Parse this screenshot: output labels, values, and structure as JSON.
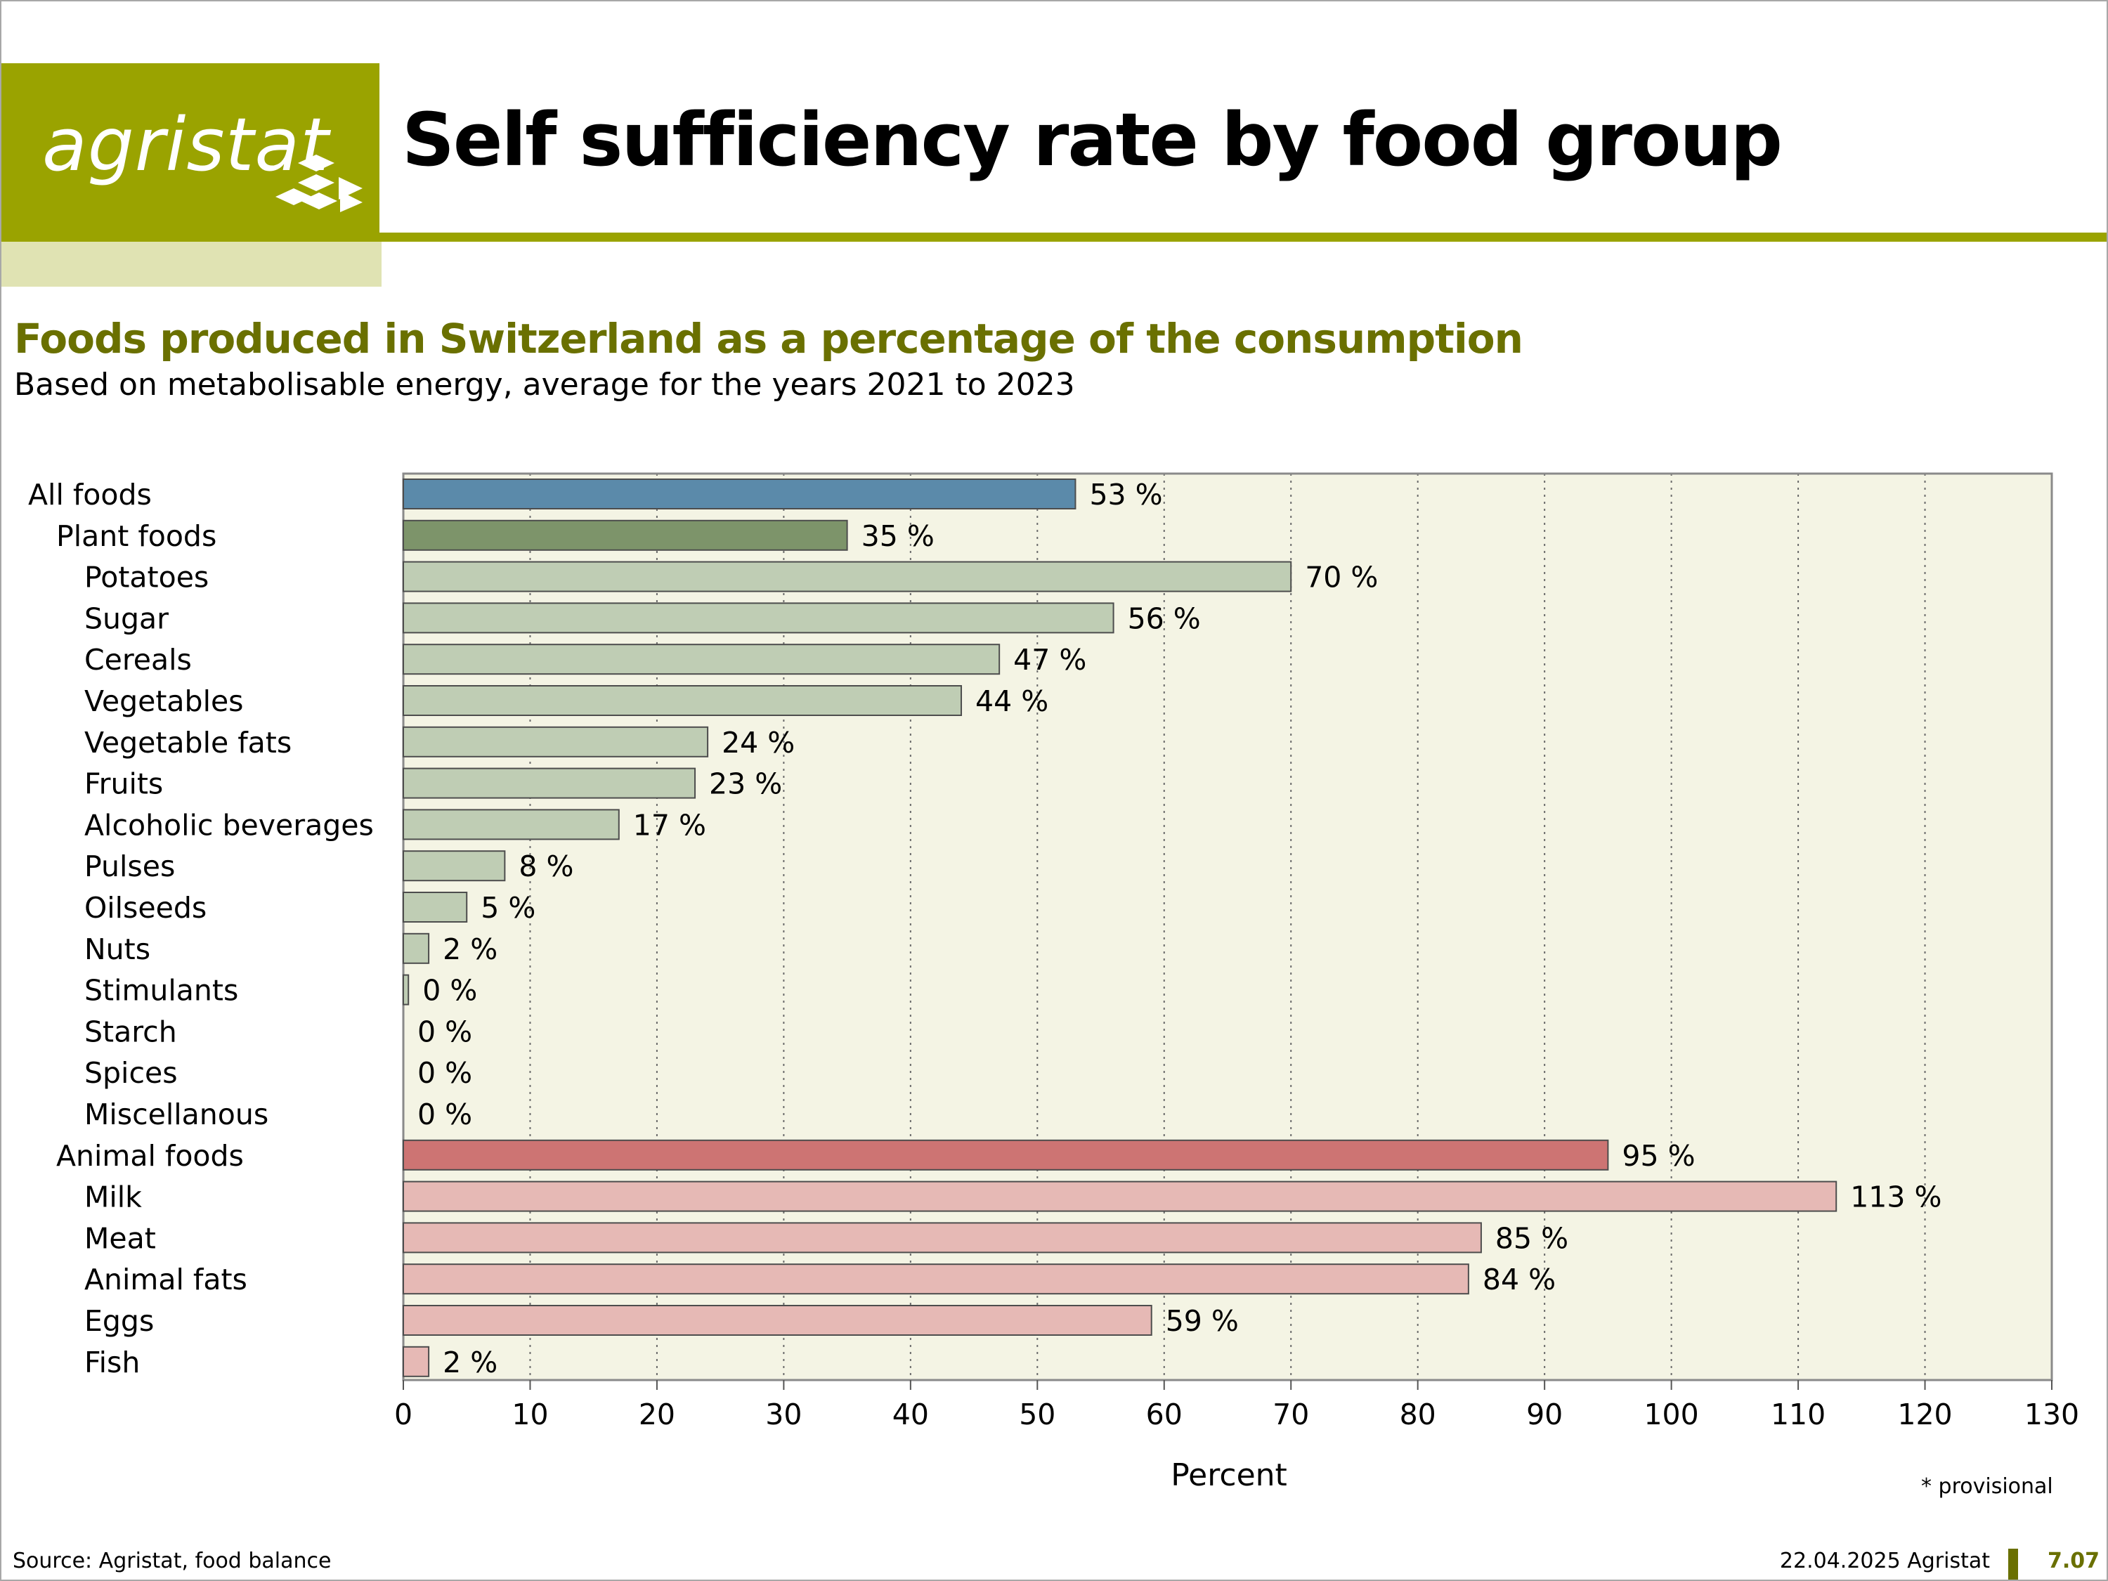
{
  "header": {
    "logo_text": "agristat",
    "title": "Self sufficiency rate by food group",
    "brand_color": "#9aa300"
  },
  "subtitle": "Foods produced in Switzerland as a percentage of the consumption",
  "subtitle2": "Based on metabolisable energy, average for the years 2021 to 2023",
  "chart_data": {
    "type": "bar",
    "orientation": "horizontal",
    "xlabel": "Percent",
    "xlim": [
      0,
      130
    ],
    "xticks": [
      "0",
      "10",
      "20",
      "30",
      "40",
      "50",
      "60",
      "70",
      "80",
      "90",
      "100",
      "110",
      "120",
      "130"
    ],
    "grid": "vertical dotted",
    "value_suffix": " %",
    "categories": [
      {
        "label": "All foods",
        "value": 53,
        "level": 0,
        "group": "total",
        "color": "#5b8aaa"
      },
      {
        "label": "Plant foods",
        "value": 35,
        "level": 1,
        "group": "plant-total",
        "color": "#7d946a"
      },
      {
        "label": "Potatoes",
        "value": 70,
        "level": 2,
        "group": "plant",
        "color": "#bfcdb4"
      },
      {
        "label": "Sugar",
        "value": 56,
        "level": 2,
        "group": "plant",
        "color": "#bfcdb4"
      },
      {
        "label": "Cereals",
        "value": 47,
        "level": 2,
        "group": "plant",
        "color": "#bfcdb4"
      },
      {
        "label": "Vegetables",
        "value": 44,
        "level": 2,
        "group": "plant",
        "color": "#bfcdb4"
      },
      {
        "label": "Vegetable fats",
        "value": 24,
        "level": 2,
        "group": "plant",
        "color": "#bfcdb4"
      },
      {
        "label": "Fruits",
        "value": 23,
        "level": 2,
        "group": "plant",
        "color": "#bfcdb4"
      },
      {
        "label": "Alcoholic beverages",
        "value": 17,
        "level": 2,
        "group": "plant",
        "color": "#bfcdb4"
      },
      {
        "label": "Pulses",
        "value": 8,
        "level": 2,
        "group": "plant",
        "color": "#bfcdb4"
      },
      {
        "label": "Oilseeds",
        "value": 5,
        "level": 2,
        "group": "plant",
        "color": "#bfcdb4"
      },
      {
        "label": "Nuts",
        "value": 2,
        "level": 2,
        "group": "plant",
        "color": "#bfcdb4"
      },
      {
        "label": "Stimulants",
        "value": 0.4,
        "display": "0",
        "level": 2,
        "group": "plant",
        "color": "#bfcdb4"
      },
      {
        "label": "Starch",
        "value": 0,
        "level": 2,
        "group": "plant",
        "color": "#bfcdb4"
      },
      {
        "label": "Spices",
        "value": 0,
        "level": 2,
        "group": "plant",
        "color": "#bfcdb4"
      },
      {
        "label": "Miscellanous",
        "value": 0,
        "level": 2,
        "group": "plant",
        "color": "#bfcdb4"
      },
      {
        "label": "Animal foods",
        "value": 95,
        "level": 1,
        "group": "animal-total",
        "color": "#cd7473"
      },
      {
        "label": "Milk",
        "value": 113,
        "level": 2,
        "group": "animal",
        "color": "#e6b9b5"
      },
      {
        "label": "Meat",
        "value": 85,
        "level": 2,
        "group": "animal",
        "color": "#e6b9b5"
      },
      {
        "label": "Animal fats",
        "value": 84,
        "level": 2,
        "group": "animal",
        "color": "#e6b9b5"
      },
      {
        "label": "Eggs",
        "value": 59,
        "level": 2,
        "group": "animal",
        "color": "#e6b9b5"
      },
      {
        "label": "Fish",
        "value": 2,
        "level": 2,
        "group": "animal",
        "color": "#e6b9b5"
      }
    ],
    "plot_background": "#f4f4e4",
    "note": "* provisional"
  },
  "footer": {
    "source": "Source: Agristat, food balance",
    "date": "22.04.2025 Agristat",
    "page": "7.07"
  }
}
